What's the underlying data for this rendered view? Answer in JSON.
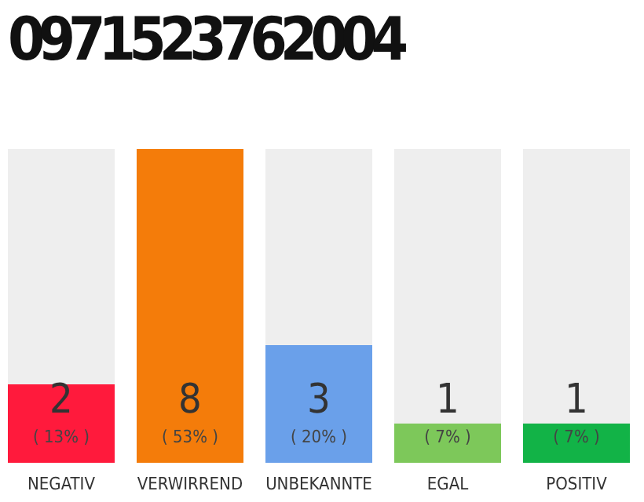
{
  "chart_data": {
    "type": "bar",
    "title": "0971523762004",
    "categories": [
      "NEGATIV",
      "VERWIRREND",
      "UNBEKANNTE",
      "EGAL",
      "POSITIV"
    ],
    "values": [
      2,
      8,
      3,
      1,
      1
    ],
    "colors": [
      "#ff1a3c",
      "#f47c0a",
      "#6aa0ea",
      "#7dc85a",
      "#12b347"
    ],
    "data_labels": true,
    "annotations": [
      "( 13% )",
      "( 53% )",
      "( 20% )",
      "( 7% )",
      "( 7% )"
    ]
  }
}
